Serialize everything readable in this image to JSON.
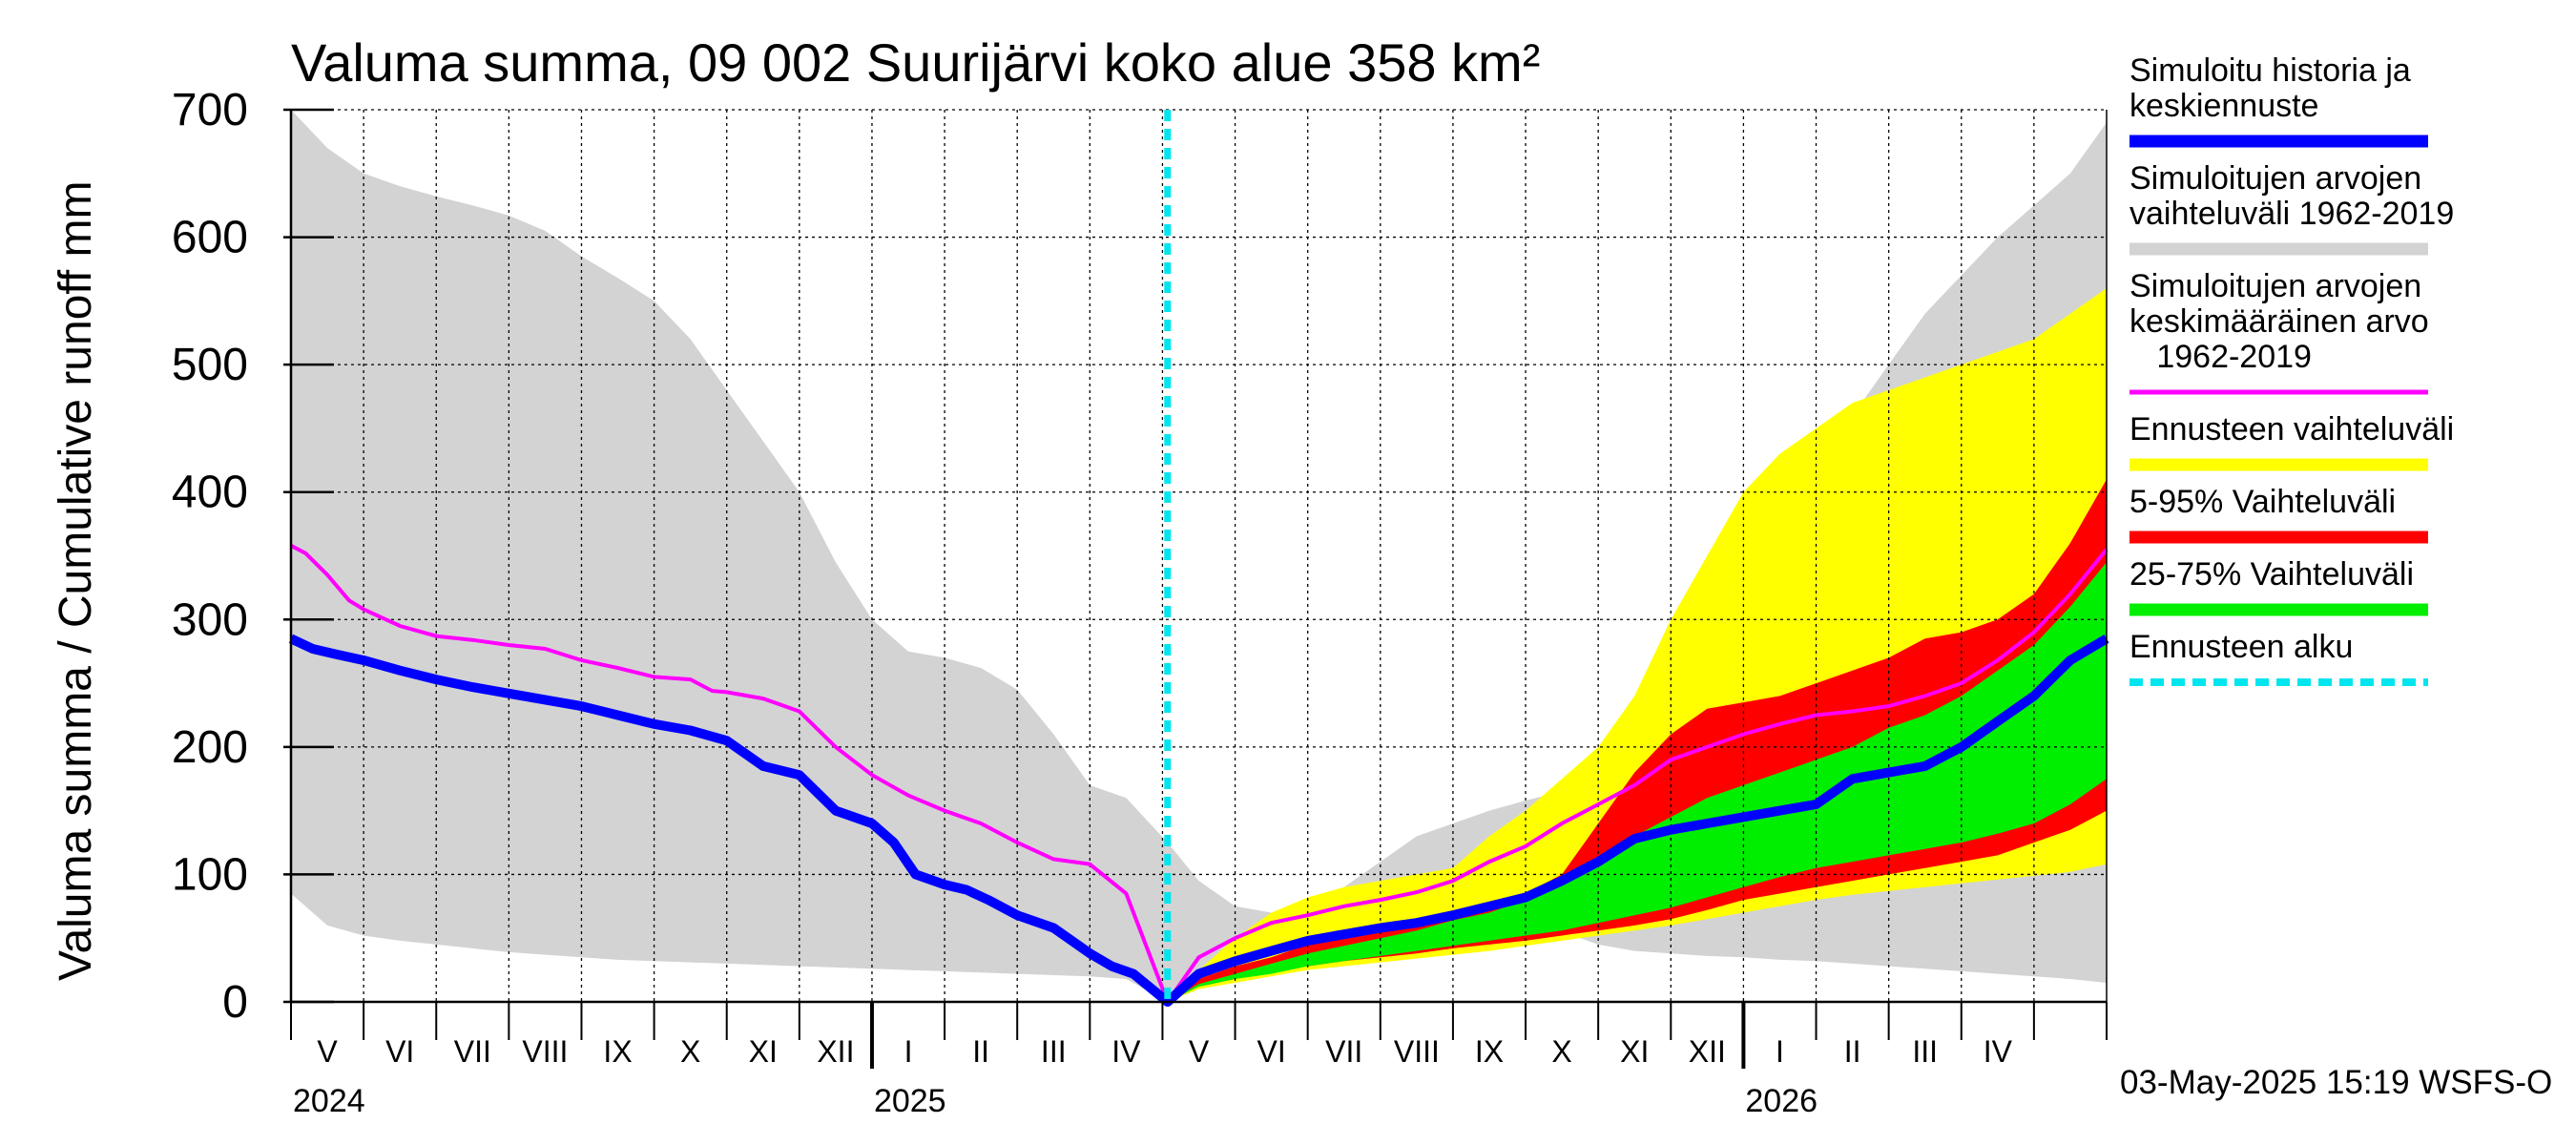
{
  "chart_data": {
    "type": "area",
    "title": "Valuma summa, 09 002 Suurijärvi koko alue 358 km²",
    "ylabel": "Valuma summa / Cumulative runoff    mm",
    "ylim": [
      0,
      700
    ],
    "yticks": [
      0,
      100,
      200,
      300,
      400,
      500,
      600,
      700
    ],
    "xlim": [
      "2024-05-01",
      "2026-05-31"
    ],
    "forecast_start": "2025-05-03",
    "month_labels": [
      "V",
      "VI",
      "VII",
      "VIII",
      "IX",
      "X",
      "XI",
      "XII",
      "I",
      "II",
      "III",
      "IV",
      "V",
      "VI",
      "VII",
      "VIII",
      "IX",
      "X",
      "XI",
      "XII",
      "I",
      "II",
      "III",
      "IV"
    ],
    "year_labels": [
      "2024",
      "2025",
      "2026"
    ],
    "timestamp": "03-May-2025 15:19 WSFS-O",
    "colors": {
      "history_range": "#d3d3d3",
      "forecast_range": "#ffff00",
      "p5_95": "#ff0000",
      "p25_75": "#00ee00",
      "mean": "#ff00ff",
      "simulated": "#0000ff",
      "forecast_start": "#00e5ee"
    },
    "legend": [
      {
        "label": "Simuloitu historia ja\nkeskiennuste",
        "color": "#0000ff",
        "style": "solid"
      },
      {
        "label": "Simuloitujen arvojen\nvaihteluväli 1962-2019",
        "color": "#d3d3d3",
        "style": "solid"
      },
      {
        "label": "Simuloitujen arvojen\nkeskimääräinen arvo\n   1962-2019",
        "color": "#ff00ff",
        "style": "thin"
      },
      {
        "label": "Ennusteen vaihteluväli",
        "color": "#ffff00",
        "style": "solid"
      },
      {
        "label": "5-95% Vaihteluväli",
        "color": "#ff0000",
        "style": "solid"
      },
      {
        "label": "25-75% Vaihteluväli",
        "color": "#00ee00",
        "style": "solid"
      },
      {
        "label": "Ennusteen alku",
        "color": "#00e5ee",
        "style": "dashed"
      }
    ],
    "series": [
      {
        "name": "history_max",
        "x": [
          0,
          0.5,
          1,
          1.5,
          2,
          2.5,
          3,
          3.5,
          4,
          4.5,
          5,
          5.5,
          6,
          6.5,
          7,
          7.5,
          8,
          8.5,
          9,
          9.5,
          10,
          10.5,
          11,
          11.5,
          12.07,
          12.5,
          13,
          13.5,
          14,
          14.5,
          15,
          15.5,
          16,
          16.5,
          17,
          17.5,
          18,
          18.5,
          19,
          19.5,
          20,
          20.5,
          21,
          21.5,
          22,
          22.5,
          23,
          23.5,
          24,
          24.5,
          25
        ],
        "values": [
          700,
          670,
          650,
          640,
          632,
          625,
          617,
          605,
          585,
          568,
          550,
          520,
          480,
          440,
          400,
          345,
          300,
          275,
          270,
          262,
          245,
          210,
          170,
          160,
          125,
          95,
          75,
          70,
          68,
          67,
          66,
          65,
          64,
          63,
          62,
          55,
          45,
          40,
          38,
          36,
          35,
          33,
          32,
          30,
          28,
          26,
          24,
          22,
          20,
          18,
          15
        ]
      },
      {
        "name": "history_min",
        "x": [
          0,
          0.5,
          1,
          1.5,
          2,
          2.5,
          3,
          3.5,
          4,
          4.5,
          5,
          5.5,
          6,
          6.5,
          7,
          7.5,
          8,
          8.5,
          9,
          9.5,
          10,
          10.5,
          11,
          11.5,
          12.07,
          12.5,
          13,
          13.5,
          14,
          14.5,
          15,
          15.5,
          16,
          16.5,
          17,
          17.5,
          18,
          18.5,
          19,
          19.5,
          20,
          20.5,
          21,
          21.5,
          22,
          22.5,
          23,
          23.5,
          24,
          24.5,
          25
        ],
        "values": [
          85,
          60,
          52,
          48,
          45,
          42,
          39,
          37,
          35,
          33,
          32,
          31,
          30,
          29,
          28,
          27,
          26,
          25,
          24,
          23,
          22,
          21,
          20,
          18,
          0,
          18,
          22,
          30,
          60,
          90,
          110,
          130,
          140,
          150,
          158,
          165,
          175,
          190,
          215,
          250,
          300,
          360,
          420,
          460,
          500,
          540,
          570,
          600,
          625,
          650,
          690
        ]
      }
    ]
  }
}
